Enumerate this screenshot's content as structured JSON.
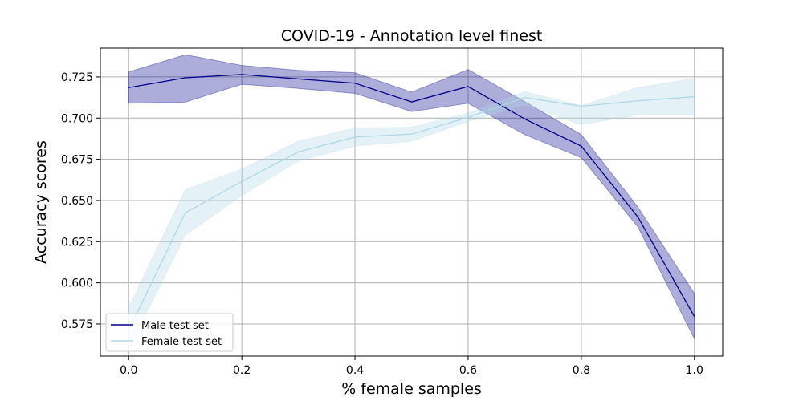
{
  "chart_data": {
    "type": "line",
    "title": "COVID-19 - Annotation level finest",
    "xlabel": "% female samples",
    "ylabel": "Accuracy scores",
    "x": [
      0.0,
      0.1,
      0.2,
      0.3,
      0.4,
      0.5,
      0.6,
      0.7,
      0.8,
      0.9,
      1.0
    ],
    "xlim": [
      -0.05,
      1.05
    ],
    "ylim": [
      0.5555,
      0.7425
    ],
    "xticks": [
      "0.0",
      "0.2",
      "0.4",
      "0.6",
      "0.8",
      "1.0"
    ],
    "xtick_values": [
      0.0,
      0.2,
      0.4,
      0.6,
      0.8,
      1.0
    ],
    "yticks": [
      "0.575",
      "0.600",
      "0.625",
      "0.650",
      "0.675",
      "0.700",
      "0.725"
    ],
    "ytick_values": [
      0.575,
      0.6,
      0.625,
      0.65,
      0.675,
      0.7,
      0.725
    ],
    "grid": true,
    "legend_position": "lower-left",
    "series": [
      {
        "name": "Male test set",
        "color": "#00008b",
        "band_color": "#00008b",
        "values": [
          0.7185,
          0.7245,
          0.7265,
          0.7238,
          0.7212,
          0.7098,
          0.7192,
          0.6995,
          0.683,
          0.64,
          0.5795
        ],
        "lower": [
          0.709,
          0.7097,
          0.7205,
          0.718,
          0.715,
          0.704,
          0.709,
          0.69,
          0.676,
          0.634,
          0.566
        ],
        "upper": [
          0.728,
          0.7385,
          0.732,
          0.729,
          0.7275,
          0.7158,
          0.7295,
          0.71,
          0.69,
          0.646,
          0.5935
        ]
      },
      {
        "name": "Female test set",
        "color": "#add8e6",
        "band_color": "#add8e6",
        "values": [
          0.571,
          0.6425,
          0.6615,
          0.6795,
          0.6885,
          0.6903,
          0.7005,
          0.7125,
          0.7072,
          0.7105,
          0.713
        ],
        "lower": [
          0.56,
          0.629,
          0.653,
          0.674,
          0.683,
          0.686,
          0.698,
          0.708,
          0.696,
          0.702,
          0.702
        ],
        "upper": [
          0.585,
          0.6565,
          0.669,
          0.686,
          0.694,
          0.6945,
          0.703,
          0.716,
          0.7075,
          0.7185,
          0.724
        ]
      }
    ]
  }
}
